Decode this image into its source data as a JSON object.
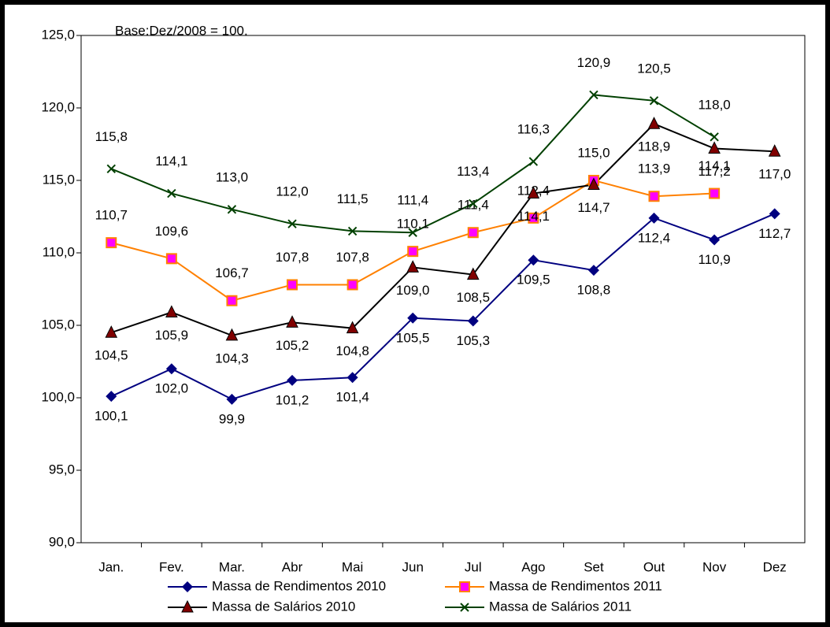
{
  "chart_data": {
    "type": "line",
    "annotation": "Base:Dez/2008 = 100.",
    "categories": [
      "Jan.",
      "Fev.",
      "Mar.",
      "Abr",
      "Mai",
      "Jun",
      "Jul",
      "Ago",
      "Set",
      "Out",
      "Nov",
      "Dez"
    ],
    "ylim": [
      90,
      125
    ],
    "yticks": [
      {
        "value": 90,
        "label": "90,0"
      },
      {
        "value": 95,
        "label": "95,0"
      },
      {
        "value": 100,
        "label": "100,0"
      },
      {
        "value": 105,
        "label": "105,0"
      },
      {
        "value": 110,
        "label": "110,0"
      },
      {
        "value": 115,
        "label": "115,0"
      },
      {
        "value": 120,
        "label": "120,0"
      },
      {
        "value": 125,
        "label": "125,0"
      }
    ],
    "grid": false,
    "series": [
      {
        "name": "Massa de Rendimentos 2010",
        "color": "#000080",
        "marker": "diamond",
        "marker_color": "#000080",
        "values": [
          100.1,
          102.0,
          99.9,
          101.2,
          101.4,
          105.5,
          105.3,
          109.5,
          108.8,
          112.4,
          110.9,
          112.7
        ],
        "value_labels": [
          "100,1",
          "102,0",
          "99,9",
          "101,2",
          "101,4",
          "105,5",
          "105,3",
          "109,5",
          "108,8",
          "112,4",
          "110,9",
          "112,7"
        ]
      },
      {
        "name": "Massa de Rendimentos 2011",
        "color": "#ff8000",
        "marker": "square",
        "marker_color": "#ff00ff",
        "values": [
          110.7,
          109.6,
          106.7,
          107.8,
          107.8,
          110.1,
          111.4,
          112.4,
          115.0,
          113.9,
          114.1,
          null
        ],
        "value_labels": [
          "110,7",
          "109,6",
          "106,7",
          "107,8",
          "107,8",
          "110,1",
          "111,4",
          "112,4",
          "115,0",
          "113,9",
          "114,1",
          null
        ]
      },
      {
        "name": "Massa de Salários 2010",
        "color": "#000000",
        "marker": "triangle",
        "marker_color": "#800000",
        "values": [
          104.5,
          105.9,
          104.3,
          105.2,
          104.8,
          109.0,
          108.5,
          114.1,
          114.7,
          118.9,
          117.2,
          117.0
        ],
        "value_labels": [
          "104,5",
          "105,9",
          "104,3",
          "105,2",
          "104,8",
          "109,0",
          "108,5",
          "114,1",
          "114,7",
          "118,9",
          "117,2",
          "117,0"
        ]
      },
      {
        "name": "Massa de Salários 2011",
        "color": "#004000",
        "marker": "cross",
        "marker_color": "#004000",
        "values": [
          115.8,
          114.1,
          113.0,
          112.0,
          111.5,
          111.4,
          113.4,
          116.3,
          120.9,
          120.5,
          118.0,
          null
        ],
        "value_labels": [
          "115,8",
          "114,1",
          "113,0",
          "112,0",
          "111,5",
          "111,4",
          "113,4",
          "116,3",
          "120,9",
          "120,5",
          "118,0",
          null
        ]
      }
    ],
    "legend": "bottom"
  }
}
